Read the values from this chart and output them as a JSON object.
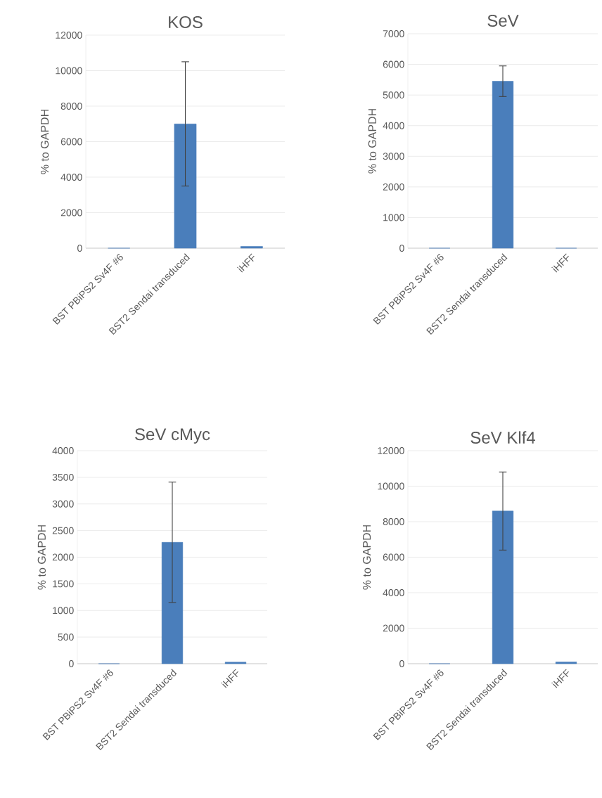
{
  "chart_data": [
    {
      "type": "bar",
      "title": "KOS",
      "ylabel": "% to GAPDH",
      "categories": [
        "BST PBiPS2 Sv4F #6",
        "BST2 Sendai transduced",
        "iHFF"
      ],
      "values": [
        0,
        7000,
        100
      ],
      "errors": [
        null,
        3500,
        null
      ],
      "color": "#4a7ebb",
      "ylim": [
        0,
        12000
      ],
      "yticks": [
        0,
        2000,
        4000,
        6000,
        8000,
        10000,
        12000
      ],
      "grid": "y"
    },
    {
      "type": "bar",
      "title": "SeV",
      "ylabel": "% to GAPDH",
      "categories": [
        "BST PBiPS2 Sv4F #6",
        "BST2 Sendai transduced",
        "iHFF"
      ],
      "values": [
        0,
        5450,
        0
      ],
      "errors": [
        null,
        500,
        null
      ],
      "color": "#4a7ebb",
      "ylim": [
        0,
        7000
      ],
      "yticks": [
        0,
        1000,
        2000,
        3000,
        4000,
        5000,
        6000,
        7000
      ],
      "grid": "y"
    },
    {
      "type": "bar",
      "title": "SeV cMyc",
      "ylabel": "% to GAPDH",
      "categories": [
        "BST PBiPS2 Sv4F #6",
        "BST2 Sendai transduced",
        "iHFF"
      ],
      "values": [
        0,
        2280,
        30
      ],
      "errors": [
        null,
        1130,
        null
      ],
      "color": "#4a7ebb",
      "ylim": [
        0,
        4000
      ],
      "yticks": [
        0,
        500,
        1000,
        1500,
        2000,
        2500,
        3000,
        3500,
        4000
      ],
      "grid": "y"
    },
    {
      "type": "bar",
      "title": "SeV Klf4",
      "ylabel": "% to GAPDH",
      "categories": [
        "BST PBiPS2 Sv4F #6",
        "BST2 Sendai transduced",
        "iHFF"
      ],
      "values": [
        0,
        8600,
        100
      ],
      "errors": [
        null,
        2200,
        null
      ],
      "color": "#4a7ebb",
      "ylim": [
        0,
        12000
      ],
      "yticks": [
        0,
        2000,
        4000,
        6000,
        8000,
        10000,
        12000
      ],
      "grid": "y"
    }
  ]
}
